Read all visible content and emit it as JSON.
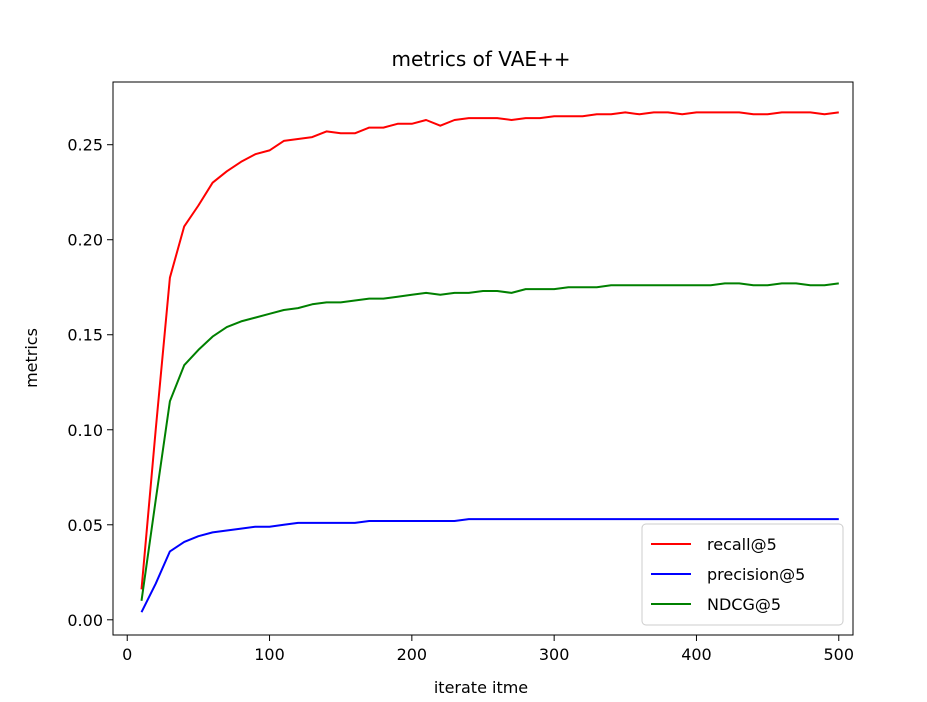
{
  "chart_data": {
    "type": "line",
    "title": "metrics of VAE++",
    "xlabel": "iterate itme",
    "ylabel": "metrics",
    "xlim": [
      -10,
      510
    ],
    "ylim": [
      -0.008,
      0.283
    ],
    "xticks": [
      0,
      100,
      200,
      300,
      400,
      500
    ],
    "xtick_labels": [
      "0",
      "100",
      "200",
      "300",
      "400",
      "500"
    ],
    "yticks": [
      0.0,
      0.05,
      0.1,
      0.15,
      0.2,
      0.25
    ],
    "ytick_labels": [
      "0.00",
      "0.05",
      "0.10",
      "0.15",
      "0.20",
      "0.25"
    ],
    "grid": false,
    "legend_position": "lower-right",
    "x": [
      10,
      20,
      30,
      40,
      50,
      60,
      70,
      80,
      90,
      100,
      110,
      120,
      130,
      140,
      150,
      160,
      170,
      180,
      190,
      200,
      210,
      220,
      230,
      240,
      250,
      260,
      270,
      280,
      290,
      300,
      310,
      320,
      330,
      340,
      350,
      360,
      370,
      380,
      390,
      400,
      410,
      420,
      430,
      440,
      450,
      460,
      470,
      480,
      490,
      500
    ],
    "series": [
      {
        "name": "recall@5",
        "color": "#ff0000",
        "values": [
          0.016,
          0.1,
          0.18,
          0.207,
          0.218,
          0.23,
          0.236,
          0.241,
          0.245,
          0.247,
          0.252,
          0.253,
          0.254,
          0.257,
          0.256,
          0.256,
          0.259,
          0.259,
          0.261,
          0.261,
          0.263,
          0.26,
          0.263,
          0.264,
          0.264,
          0.264,
          0.263,
          0.264,
          0.264,
          0.265,
          0.265,
          0.265,
          0.266,
          0.266,
          0.267,
          0.266,
          0.267,
          0.267,
          0.266,
          0.267,
          0.267,
          0.267,
          0.267,
          0.266,
          0.266,
          0.267,
          0.267,
          0.267,
          0.266,
          0.267
        ]
      },
      {
        "name": "precision@5",
        "color": "#0000ff",
        "values": [
          0.004,
          0.019,
          0.036,
          0.041,
          0.044,
          0.046,
          0.047,
          0.048,
          0.049,
          0.049,
          0.05,
          0.051,
          0.051,
          0.051,
          0.051,
          0.051,
          0.052,
          0.052,
          0.052,
          0.052,
          0.052,
          0.052,
          0.052,
          0.053,
          0.053,
          0.053,
          0.053,
          0.053,
          0.053,
          0.053,
          0.053,
          0.053,
          0.053,
          0.053,
          0.053,
          0.053,
          0.053,
          0.053,
          0.053,
          0.053,
          0.053,
          0.053,
          0.053,
          0.053,
          0.053,
          0.053,
          0.053,
          0.053,
          0.053,
          0.053
        ]
      },
      {
        "name": "NDCG@5",
        "color": "#008000",
        "values": [
          0.01,
          0.063,
          0.115,
          0.134,
          0.142,
          0.149,
          0.154,
          0.157,
          0.159,
          0.161,
          0.163,
          0.164,
          0.166,
          0.167,
          0.167,
          0.168,
          0.169,
          0.169,
          0.17,
          0.171,
          0.172,
          0.171,
          0.172,
          0.172,
          0.173,
          0.173,
          0.172,
          0.174,
          0.174,
          0.174,
          0.175,
          0.175,
          0.175,
          0.176,
          0.176,
          0.176,
          0.176,
          0.176,
          0.176,
          0.176,
          0.176,
          0.177,
          0.177,
          0.176,
          0.176,
          0.177,
          0.177,
          0.176,
          0.176,
          0.177
        ]
      }
    ]
  }
}
